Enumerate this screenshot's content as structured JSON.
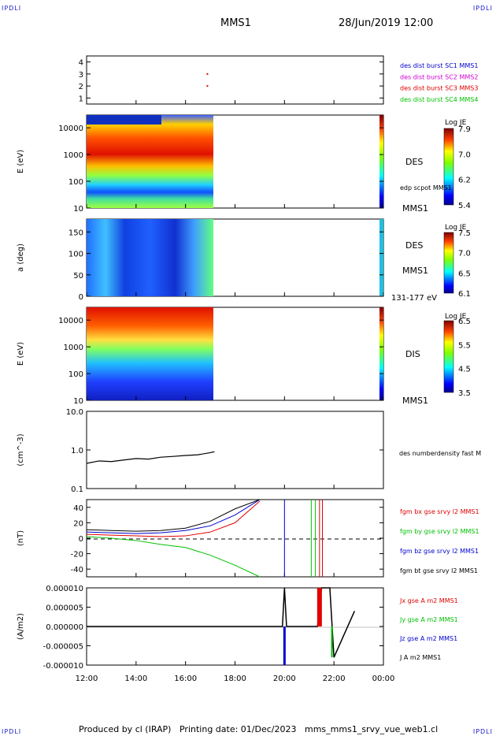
{
  "corner_label": "IPDLI",
  "header": {
    "spacecraft": "MMS1",
    "datetime": "28/Jun/2019 12:00"
  },
  "footer": {
    "produced_by": "Produced by cl (IRAP)",
    "printing_date": "Printing date: 01/Dec/2023",
    "script_name": "mms_mms1_srvy_vue_web1.cl"
  },
  "colors": {
    "axis": "#000000",
    "series_label_blue": "#0000d0"
  },
  "time_axis": {
    "ticks": [
      "12:00",
      "14:00",
      "16:00",
      "18:00",
      "20:00",
      "22:00",
      "00:00"
    ]
  },
  "panels": {
    "burst": {
      "ticks": [
        "4",
        "3",
        "2",
        "1"
      ],
      "legend": [
        {
          "text": "des dist burst SC1 MMS1",
          "color": "#0000d0"
        },
        {
          "text": "des dist burst SC2 MMS2",
          "color": "#d000d0"
        },
        {
          "text": "des dist burst SC3 MMS3",
          "color": "#e00000"
        },
        {
          "text": "des dist burst SC4 MMS4",
          "color": "#00c000"
        }
      ]
    },
    "des_energy": {
      "ylabel": "E (eV)",
      "ticks": [
        "10000",
        "1000",
        "100",
        "10"
      ],
      "label": "DES",
      "sublabel": "MMS1",
      "overlay_label": "edp scpot MMS1",
      "cbar_title": "Log JE",
      "cbar_ticks": [
        "7.9",
        "7.0",
        "6.2",
        "5.4"
      ]
    },
    "des_pitch": {
      "ylabel": "a (deg)",
      "ticks": [
        "150",
        "100",
        "50",
        "0"
      ],
      "label": "DES",
      "sublabel": "MMS1",
      "energy_range": "131-177 eV",
      "cbar_title": "Log JE",
      "cbar_ticks": [
        "7.5",
        "7.0",
        "6.5",
        "6.1"
      ]
    },
    "dis_energy": {
      "ylabel": "E (eV)",
      "ticks": [
        "10000",
        "1000",
        "100",
        "10"
      ],
      "label": "DIS",
      "sublabel": "MMS1",
      "cbar_title": "Log JE",
      "cbar_ticks": [
        "6.5",
        "5.5",
        "4.5",
        "3.5"
      ]
    },
    "density": {
      "ylabel": "(cm^-3)",
      "ticks": [
        "10.0",
        "1.0",
        "0.1"
      ],
      "legend": "des numberdensity fast M"
    },
    "bfield": {
      "ylabel": "(nT)",
      "ticks": [
        "40",
        "20",
        "0",
        "-20",
        "-40"
      ],
      "legend": [
        {
          "text": "fgm bx gse srvy l2 MMS1",
          "color": "#e00000"
        },
        {
          "text": "fgm by gse srvy l2 MMS1",
          "color": "#00c000"
        },
        {
          "text": "fgm bz gse srvy l2 MMS1",
          "color": "#0000d0"
        },
        {
          "text": "fgm bt gse srvy l2 MMS1",
          "color": "#000000"
        }
      ]
    },
    "current": {
      "ylabel": "(A/m2)",
      "ticks": [
        "0.000010",
        "0.000005",
        "0.000000",
        "-0.000005",
        "-0.000010"
      ],
      "legend": [
        {
          "text": "Jx gse A m2 MMS1",
          "color": "#e00000"
        },
        {
          "text": "Jy gse A m2 MMS1",
          "color": "#00c000"
        },
        {
          "text": "Jz gse A m2 MMS1",
          "color": "#0000d0"
        },
        {
          "text": "J A m2 MMS1",
          "color": "#000000"
        }
      ]
    }
  },
  "chart_data": [
    {
      "type": "scatter",
      "panel": "burst",
      "ylim": [
        0.5,
        4.5
      ],
      "x": [
        "16:53",
        "16:53"
      ],
      "y": [
        3,
        2
      ]
    },
    {
      "type": "heatmap",
      "panel": "des_energy",
      "ylim": [
        10,
        30000
      ],
      "yscale": "log",
      "x_range": [
        "12:00",
        "17:10"
      ],
      "zlim": [
        5.4,
        7.9
      ]
    },
    {
      "type": "heatmap",
      "panel": "des_pitch",
      "ylim": [
        0,
        180
      ],
      "x_range": [
        "12:00",
        "17:10"
      ],
      "zlim": [
        6.1,
        7.5
      ]
    },
    {
      "type": "heatmap",
      "panel": "dis_energy",
      "ylim": [
        10,
        30000
      ],
      "yscale": "log",
      "x_range": [
        "12:00",
        "17:10"
      ],
      "zlim": [
        3.5,
        6.5
      ]
    },
    {
      "type": "line",
      "panel": "density",
      "ylim": [
        0.1,
        10
      ],
      "yscale": "log",
      "x": [
        "12:00",
        "12:30",
        "13:00",
        "13:30",
        "14:00",
        "14:30",
        "15:00",
        "15:30",
        "16:00",
        "16:30",
        "17:00",
        "17:10"
      ],
      "y": [
        0.45,
        0.52,
        0.5,
        0.55,
        0.6,
        0.58,
        0.65,
        0.68,
        0.72,
        0.75,
        0.85,
        0.9
      ]
    },
    {
      "type": "line",
      "panel": "bfield",
      "ylim": [
        -50,
        50
      ],
      "x": [
        "12:00",
        "13:00",
        "14:00",
        "15:00",
        "16:00",
        "17:00",
        "18:00",
        "19:00"
      ],
      "series": [
        {
          "values": [
            5,
            4,
            3,
            2,
            3,
            8,
            20,
            48
          ]
        },
        {
          "values": [
            2,
            0,
            -3,
            -8,
            -12,
            -22,
            -35,
            -50
          ]
        },
        {
          "values": [
            8,
            7,
            6,
            7,
            10,
            16,
            30,
            50
          ]
        },
        {
          "values": [
            11,
            10,
            9,
            10,
            13,
            22,
            38,
            50
          ]
        }
      ]
    },
    {
      "type": "line",
      "panel": "current",
      "ylim": [
        -1e-05,
        1e-05
      ],
      "x": [
        "12:00",
        "19:55",
        "20:00",
        "20:05",
        "21:20",
        "21:30",
        "21:50",
        "22:00",
        "22:50"
      ],
      "y": [
        0,
        0,
        1e-05,
        0,
        0,
        1e-05,
        1e-05,
        -8e-06,
        4e-06
      ]
    }
  ]
}
